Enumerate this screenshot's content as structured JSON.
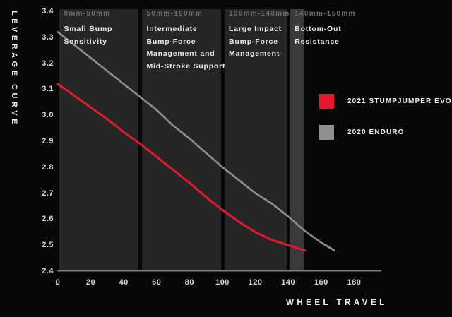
{
  "chart_data": {
    "type": "line",
    "title": "",
    "xlabel": "WHEEL TRAVEL",
    "ylabel": "LEVERAGE CURVE",
    "x_ticks": [
      "0",
      "20",
      "40",
      "60",
      "80",
      "100",
      "120",
      "140",
      "160",
      "180"
    ],
    "y_ticks": [
      "3.4",
      "3.3",
      "3.2",
      "3.1",
      "3.0",
      "2.9",
      "2.8",
      "2.7",
      "2.6",
      "2.5",
      "2.4"
    ],
    "xlim": [
      0,
      197
    ],
    "ylim": [
      2.4,
      3.4
    ],
    "grid": false,
    "legend_position": "right",
    "series": [
      {
        "name": "2021 STUMPJUMPER EVO",
        "color": "#e21b2c",
        "points": [
          [
            0,
            3.12
          ],
          [
            10,
            3.075
          ],
          [
            20,
            3.03
          ],
          [
            30,
            2.985
          ],
          [
            40,
            2.935
          ],
          [
            50,
            2.89
          ],
          [
            60,
            2.84
          ],
          [
            70,
            2.79
          ],
          [
            80,
            2.74
          ],
          [
            90,
            2.685
          ],
          [
            100,
            2.635
          ],
          [
            110,
            2.59
          ],
          [
            120,
            2.55
          ],
          [
            130,
            2.52
          ],
          [
            140,
            2.5
          ],
          [
            150,
            2.48
          ]
        ]
      },
      {
        "name": "2020 ENDURO",
        "color": "#8f8f8f",
        "points": [
          [
            0,
            3.32
          ],
          [
            10,
            3.27
          ],
          [
            20,
            3.22
          ],
          [
            30,
            3.17
          ],
          [
            40,
            3.12
          ],
          [
            50,
            3.07
          ],
          [
            60,
            3.02
          ],
          [
            70,
            2.96
          ],
          [
            80,
            2.91
          ],
          [
            90,
            2.855
          ],
          [
            100,
            2.8
          ],
          [
            110,
            2.75
          ],
          [
            120,
            2.7
          ],
          [
            130,
            2.66
          ],
          [
            140,
            2.61
          ],
          [
            150,
            2.555
          ],
          [
            160,
            2.51
          ],
          [
            168,
            2.48
          ]
        ]
      }
    ],
    "zones": [
      {
        "range": "0mm-50mm",
        "from_mm": 0,
        "to_mm": 50,
        "band": "dark",
        "lines": [
          "Small Bump",
          "Sensitivity"
        ]
      },
      {
        "range": "50mm-100mm",
        "from_mm": 50,
        "to_mm": 100,
        "band": "dark",
        "lines": [
          "Intermediate",
          "Bump-Force",
          "Management and",
          "Mid-Stroke Support"
        ]
      },
      {
        "range": "100mm-140mm",
        "from_mm": 100,
        "to_mm": 140,
        "band": "dark",
        "lines": [
          "Large Impact",
          "Bump-Force",
          "Management"
        ]
      },
      {
        "range": "140mm-150mm",
        "from_mm": 140,
        "to_mm": 150,
        "band": "light",
        "lines": [
          "Bottom-Out",
          "Resistance"
        ]
      }
    ]
  },
  "colors": {
    "background": "#070707",
    "band_dark": "#262626",
    "band_light": "#3a3a3a",
    "axis_line": "#7d7d7d",
    "tick_text": "#d9d9d9",
    "zone_range_text": "#6e6e6e",
    "zone_desc_text": "#ebebeb",
    "series_red": "#e21b2c",
    "series_gray": "#8f8f8f"
  },
  "legend": {
    "items": [
      {
        "label": "2021 STUMPJUMPER EVO",
        "color": "#e21b2c"
      },
      {
        "label": "2020 ENDURO",
        "color": "#8f8f8f"
      }
    ]
  }
}
